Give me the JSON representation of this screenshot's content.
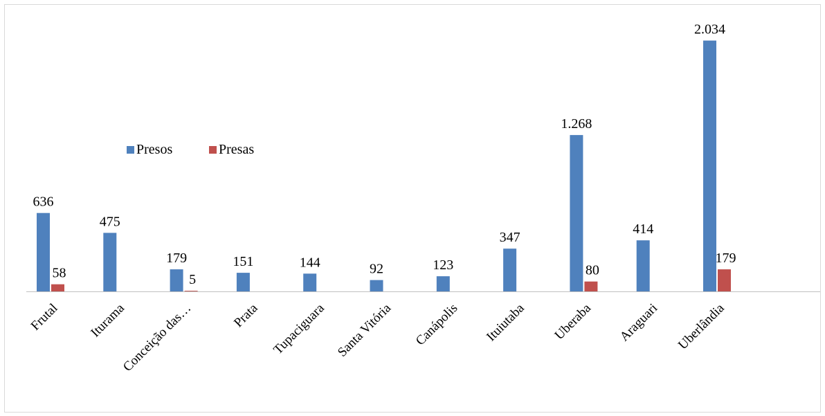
{
  "chart_data": {
    "type": "bar",
    "categories": [
      "Frutal",
      "Iturama",
      "Conceição das…",
      "Prata",
      "Tupaciguara",
      "Santa Vitória",
      "Canápolis",
      "Ituiutaba",
      "Uberaba",
      "Araguari",
      "Uberlândia"
    ],
    "series": [
      {
        "name": "Presos",
        "color": "#4f81bd",
        "values": [
          636,
          475,
          179,
          151,
          144,
          92,
          123,
          347,
          1268,
          414,
          2034
        ],
        "labels": [
          "636",
          "475",
          "179",
          "151",
          "144",
          "92",
          "123",
          "347",
          "1.268",
          "414",
          "2.034"
        ]
      },
      {
        "name": "Presas",
        "color": "#c0504d",
        "values": [
          58,
          0,
          5,
          0,
          0,
          0,
          0,
          0,
          80,
          0,
          179
        ],
        "labels": [
          "58",
          "",
          "5",
          "",
          "",
          "",
          "",
          "",
          "80",
          "",
          "179"
        ]
      }
    ],
    "ylim": [
      0,
      2200
    ],
    "grid": false,
    "legend": "upper-left inside plot",
    "title": "",
    "xlabel": "",
    "ylabel": ""
  }
}
